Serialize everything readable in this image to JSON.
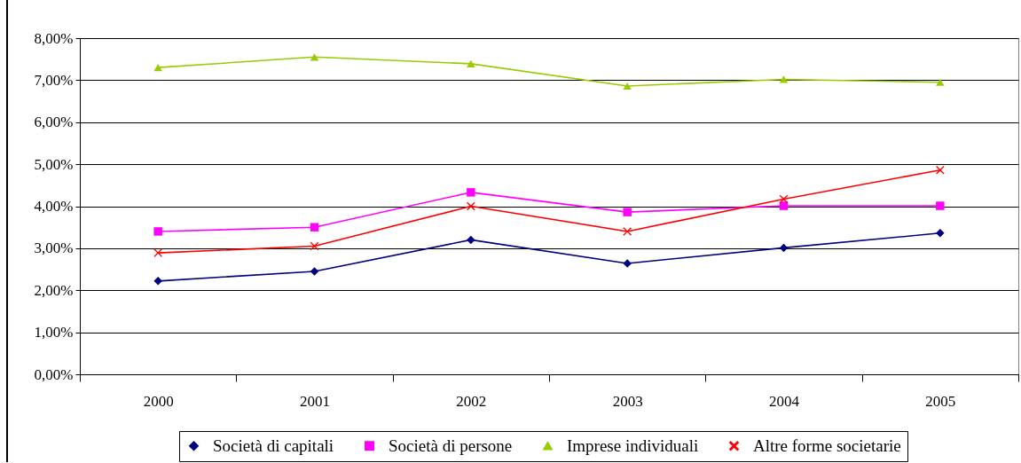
{
  "chart_data": {
    "type": "line",
    "categories": [
      "2000",
      "2001",
      "2002",
      "2003",
      "2004",
      "2005"
    ],
    "series": [
      {
        "name": "Società di capitali",
        "color": "#000080",
        "marker": "diamond",
        "values": [
          2.22,
          2.45,
          3.2,
          2.64,
          3.01,
          3.36
        ]
      },
      {
        "name": "Società di persone",
        "color": "#ff00ff",
        "marker": "square",
        "values": [
          3.4,
          3.5,
          4.33,
          3.86,
          4.01,
          4.01
        ]
      },
      {
        "name": "Imprese individuali",
        "color": "#99cc00",
        "marker": "triangle",
        "values": [
          7.3,
          7.55,
          7.39,
          6.86,
          7.02,
          6.95
        ]
      },
      {
        "name": "Altre forme societarie",
        "color": "#ff0000",
        "marker": "cross",
        "values": [
          2.89,
          3.05,
          4.0,
          3.4,
          4.17,
          4.86
        ]
      }
    ],
    "ylim": [
      0,
      8
    ],
    "yticks": [
      {
        "value": 0,
        "label": "0,00%"
      },
      {
        "value": 1,
        "label": "1,00%"
      },
      {
        "value": 2,
        "label": "2,00%"
      },
      {
        "value": 3,
        "label": "3,00%"
      },
      {
        "value": 4,
        "label": "4,00%"
      },
      {
        "value": 5,
        "label": "5,00%"
      },
      {
        "value": 6,
        "label": "6,00%"
      },
      {
        "value": 7,
        "label": "7,00%"
      },
      {
        "value": 8,
        "label": "8,00%"
      }
    ],
    "grid": "y",
    "legend": "bottom"
  }
}
